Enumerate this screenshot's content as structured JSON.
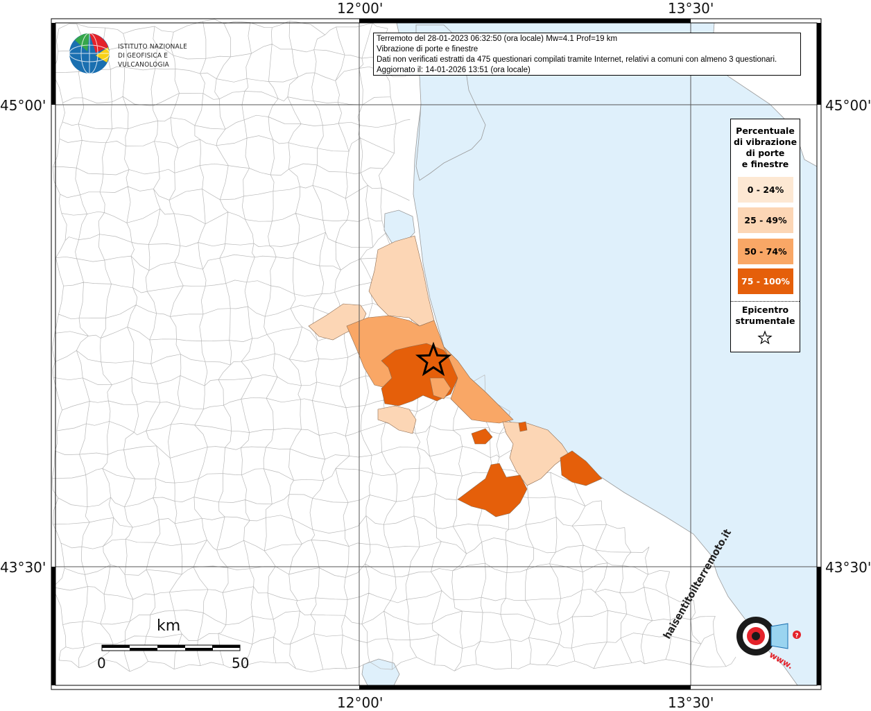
{
  "coordinates": {
    "top_left_lon": "12°00'",
    "top_right_lon": "13°30'",
    "bottom_left_lon": "12°00'",
    "bottom_right_lon": "13°30'",
    "left_upper_lat": "45°00'",
    "left_lower_lat": "43°30'",
    "right_upper_lat": "45°00'",
    "right_lower_lat": "43°30'"
  },
  "info": {
    "line1": "Terremoto del 28-01-2023 06:32:50 (ora locale) Mw=4.1 Prof=19 km",
    "line2": "Vibrazione di porte e finestre",
    "line3": "Dati non verificati estratti da 475 questionari compilati tramite Internet, relativi a comuni con almeno 3 questionari.",
    "line4": "Aggiornato il: 14-01-2026 13:51 (ora locale)"
  },
  "logo": {
    "line1": "ISTITUTO NAZIONALE",
    "line2": "DI GEOFISICA E VULCANOLOGIA"
  },
  "legend": {
    "title_lines": [
      "Percentuale",
      "di vibrazione",
      "di porte",
      "e finestre"
    ],
    "classes": [
      {
        "label": "0 - 24%",
        "color": "#fde8d3"
      },
      {
        "label": "25 - 49%",
        "color": "#fcd6b5"
      },
      {
        "label": "50 - 74%",
        "color": "#f9a766"
      },
      {
        "label": "75 - 100%",
        "color": "#e55f0a"
      }
    ],
    "epicenter_lines": [
      "Epicentro",
      "strumentale"
    ]
  },
  "scale": {
    "unit": "km",
    "min": "0",
    "max": "50"
  },
  "watermark": {
    "text": "haisentitoilterremoto.it",
    "url": "www."
  },
  "colors": {
    "sea": "#dff0fb",
    "land": "#ffffff",
    "borders": "#b8b8b8"
  }
}
